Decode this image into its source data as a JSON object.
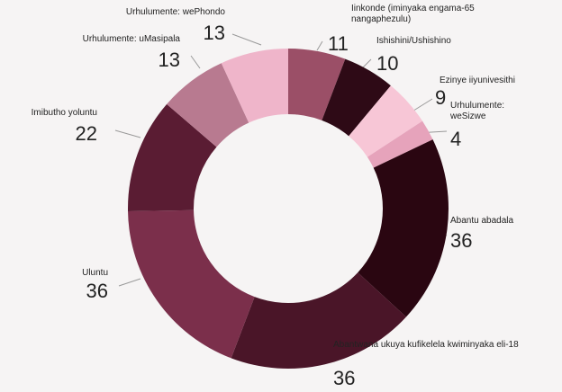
{
  "chart_data": {
    "type": "donut",
    "categories": [
      "Iinkonde (iminyaka engama-65 nangaphezulu)",
      "Ishishini/Ushishino",
      "Ezinye iiyunivesithi",
      "Urhulumente: weSizwe",
      "Abantu abadala",
      "Abantwana ukuya kufikelela kwiminyaka eli-18",
      "Uluntu",
      "Imibutho yoluntu",
      "Urhulumente: uMasipala",
      "Urhulumente: wePhondo"
    ],
    "values": [
      11,
      10,
      9,
      4,
      36,
      36,
      36,
      22,
      13,
      13
    ],
    "colors": [
      "#9b4f67",
      "#2e0a16",
      "#f7c6d6",
      "#e6a3bb",
      "#2a0611",
      "#4a1528",
      "#7b2f4b",
      "#5a1c33",
      "#b87a90",
      "#efb5ca"
    ]
  }
}
